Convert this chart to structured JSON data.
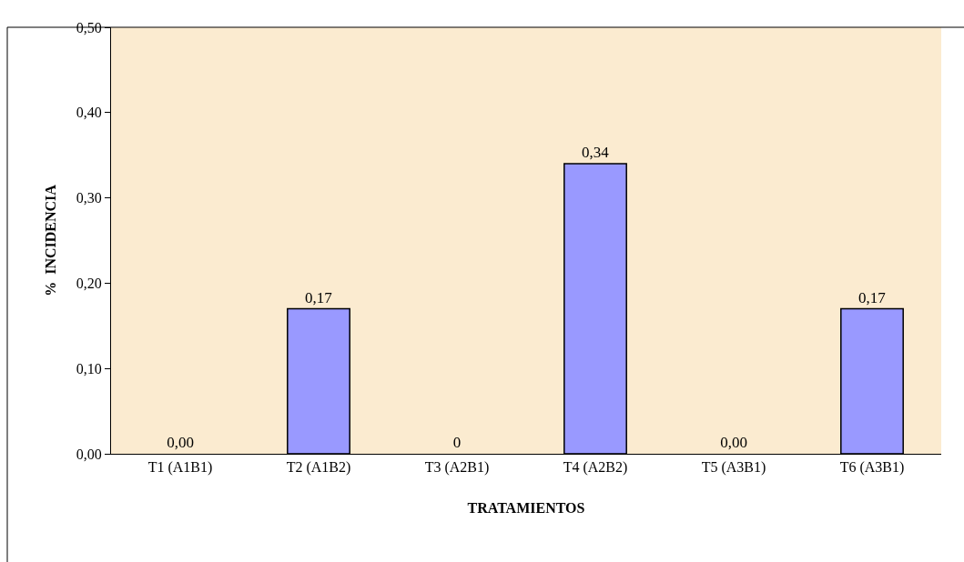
{
  "chart_data": {
    "type": "bar",
    "xlabel": "TRATAMIENTOS",
    "ylabel": "%  INCIDENCIA",
    "categories": [
      "T1 (A1B1)",
      "T2 (A1B2)",
      "T3 (A2B1)",
      "T4 (A2B2)",
      "T5 (A3B1)",
      "T6 (A3B1)"
    ],
    "values": [
      0,
      0.17,
      0,
      0.34,
      0,
      0.17
    ],
    "value_labels": [
      "0,00",
      "0,17",
      "0",
      "0,34",
      "0,00",
      "0,17"
    ],
    "color": "#9999ff",
    "ylim": [
      0,
      0.5
    ],
    "yticks": [
      {
        "value": 0,
        "label": "0,00"
      },
      {
        "value": 0.1,
        "label": "0,10"
      },
      {
        "value": 0.2,
        "label": "0,20"
      },
      {
        "value": 0.3,
        "label": "0,30"
      },
      {
        "value": 0.4,
        "label": "0,40"
      },
      {
        "value": 0.5,
        "label": "0,50"
      }
    ],
    "grid": false
  }
}
